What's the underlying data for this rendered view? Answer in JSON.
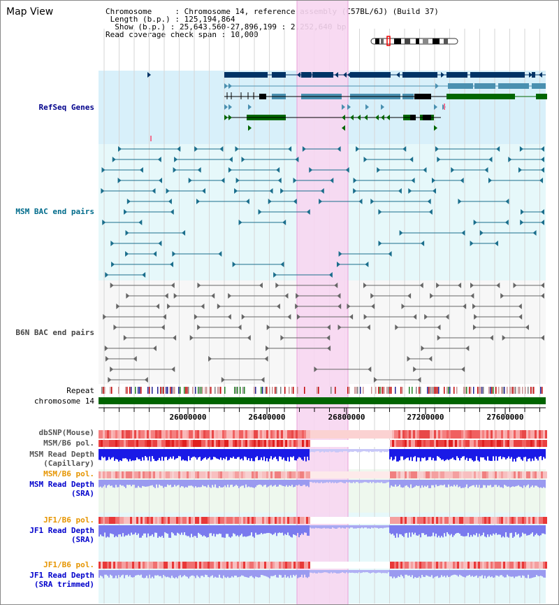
{
  "title": "Map View",
  "info": {
    "chromosome_label": "Chromosome",
    "chromosome_value": "Chromosome 14, reference assembly (C57BL/6J) (Build 37)",
    "length_label": "Length (b.p.)",
    "length_value": "125,194,864",
    "show_label": "Show (b.p.)",
    "show_value": "25,643,560-27,896,199 : 2,252,640 bp",
    "coverage_label": "Read coverage check span",
    "coverage_value": "10,000"
  },
  "tracks": {
    "refseq": {
      "label": "RefSeq Genes",
      "color": "#00008b"
    },
    "msm_bac": {
      "label": "MSM BAC end pairs",
      "color": "#006b8b"
    },
    "b6n_bac": {
      "label": "B6N BAC end pairs",
      "color": "#444444"
    },
    "repeat": {
      "label": "Repeat"
    },
    "chromosome": {
      "label": "chromosome 14",
      "color": "#006400"
    },
    "dbsnp": {
      "label": "dbSNP(Mouse)"
    },
    "msm_b6_pol_cap": {
      "label": "MSM/B6 pol."
    },
    "msm_depth_cap": {
      "label": "MSM Read Depth",
      "sub": "(Capillary)"
    },
    "msm_b6_pol_sra": {
      "label": "MSM/B6 pol.",
      "color": "#e69500"
    },
    "msm_depth_sra": {
      "label": "MSM Read Depth",
      "sub": "(SRA)",
      "color": "#0000cc"
    },
    "jf1_b6_pol_sra": {
      "label": "JF1/B6 pol.",
      "color": "#e69500"
    },
    "jf1_depth_sra": {
      "label": "JF1 Read Depth",
      "sub": "(SRA)",
      "color": "#0000cc"
    },
    "jf1_b6_pol_trim": {
      "label": "JF1/B6 pol.",
      "color": "#e69500"
    },
    "jf1_depth_trim": {
      "label": "JF1 Read Depth",
      "sub": "(SRA trimmed)",
      "color": "#0000cc"
    }
  },
  "axis": {
    "ticks": [
      "26000000",
      "26400000",
      "26800000",
      "27200000",
      "27600000"
    ]
  },
  "colors": {
    "highlight": "#f7d6f1",
    "gene_navy": "#003366",
    "gene_teal": "#4a90b0",
    "gene_green": "#006600"
  }
}
